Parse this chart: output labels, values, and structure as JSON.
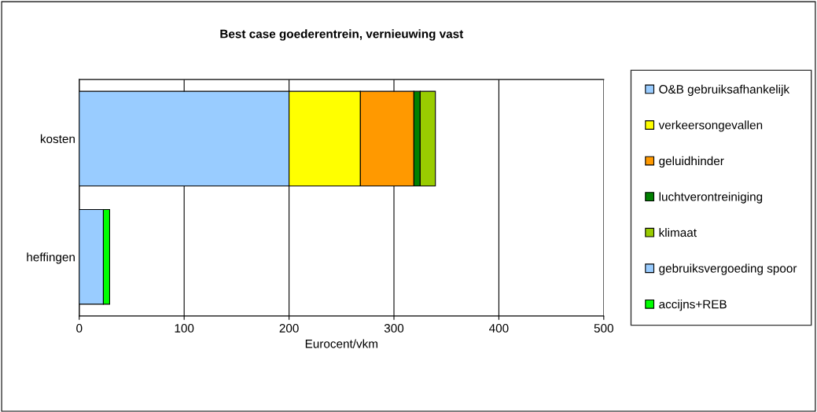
{
  "chart_data": {
    "type": "bar",
    "orientation": "horizontal",
    "stacked": true,
    "title": "Best case goederentrein, vernieuwing vast",
    "xlabel": "Eurocent/vkm",
    "categories": [
      "kosten",
      "heffingen"
    ],
    "series": [
      {
        "name": "O&B gebruiksafhankelijk",
        "color": "#99ccff",
        "values": [
          200,
          null
        ]
      },
      {
        "name": "verkeersongevallen",
        "color": "#ffff00",
        "values": [
          68,
          null
        ]
      },
      {
        "name": "geluidhinder",
        "color": "#ff9900",
        "values": [
          51,
          null
        ]
      },
      {
        "name": "luchtverontreiniging",
        "color": "#008000",
        "values": [
          6,
          null
        ]
      },
      {
        "name": "klimaat",
        "color": "#99cc00",
        "values": [
          14.5,
          null
        ]
      },
      {
        "name": "gebruiksvergoeding spoor",
        "color": "#99ccff",
        "values": [
          null,
          23
        ]
      },
      {
        "name": "accijns+REB",
        "color": "#00ff00",
        "values": [
          null,
          6
        ]
      }
    ],
    "xlim": [
      0,
      500
    ],
    "xticks": [
      0,
      100,
      200,
      300,
      400,
      500
    ],
    "grid": "x",
    "legend": "right"
  }
}
